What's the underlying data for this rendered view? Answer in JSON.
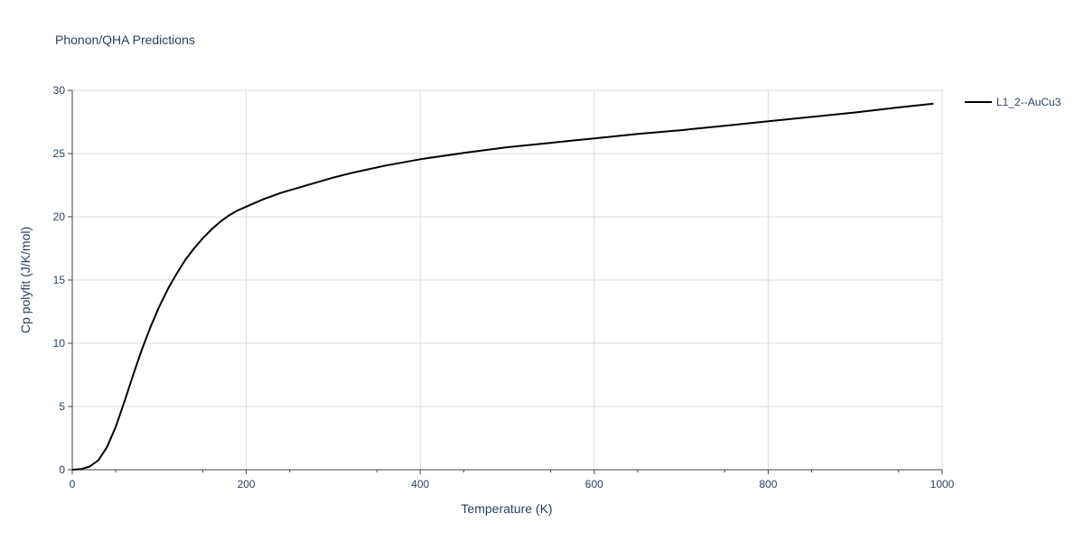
{
  "chart_data": {
    "type": "line",
    "title": "Phonon/QHA Predictions",
    "xlabel": "Temperature (K)",
    "ylabel": "Cp polyfit (J/K/mol)",
    "xlim": [
      0,
      1000
    ],
    "ylim": [
      0,
      30
    ],
    "xticks": [
      0,
      200,
      400,
      600,
      800,
      1000
    ],
    "yticks": [
      0,
      5,
      10,
      15,
      20,
      25,
      30
    ],
    "grid": true,
    "legend_position": "top-right",
    "series": [
      {
        "name": "L1_2--AuCu3",
        "color": "#000000",
        "x": [
          0,
          10,
          20,
          30,
          40,
          50,
          60,
          70,
          80,
          90,
          100,
          110,
          120,
          130,
          140,
          150,
          160,
          170,
          180,
          190,
          200,
          220,
          240,
          260,
          280,
          300,
          320,
          340,
          360,
          380,
          400,
          450,
          500,
          550,
          600,
          650,
          700,
          750,
          800,
          850,
          900,
          950,
          990
        ],
        "y": [
          0,
          0.05,
          0.25,
          0.75,
          1.8,
          3.4,
          5.4,
          7.5,
          9.5,
          11.3,
          12.9,
          14.3,
          15.5,
          16.6,
          17.5,
          18.3,
          19.0,
          19.6,
          20.1,
          20.5,
          20.8,
          21.4,
          21.9,
          22.3,
          22.7,
          23.1,
          23.45,
          23.75,
          24.05,
          24.3,
          24.55,
          25.05,
          25.5,
          25.85,
          26.2,
          26.55,
          26.85,
          27.2,
          27.55,
          27.9,
          28.25,
          28.65,
          28.95
        ]
      }
    ]
  }
}
